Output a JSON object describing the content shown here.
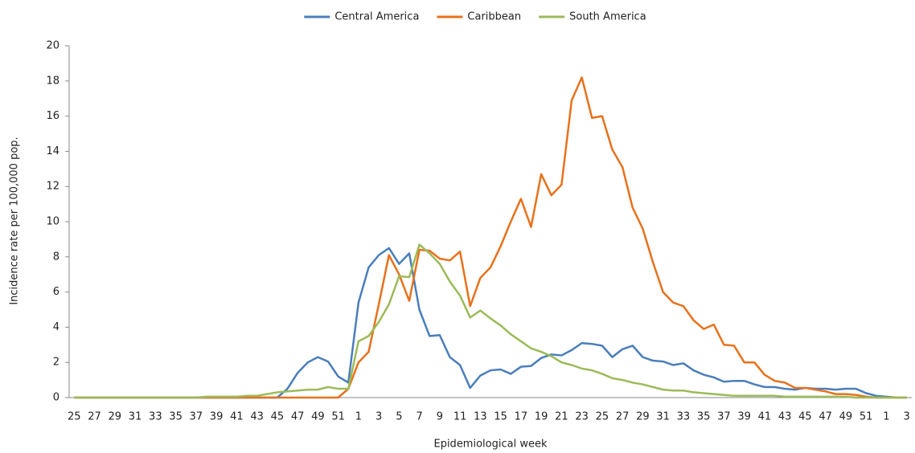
{
  "chart_data": {
    "type": "line",
    "y_label": "Incidence rate per 100,000 pop.",
    "x_label": "Epidemiological week",
    "categories": [
      "25",
      null,
      "27",
      null,
      "29",
      null,
      "31",
      null,
      "33",
      null,
      "35",
      null,
      "37",
      null,
      "39",
      null,
      "41",
      null,
      "43",
      null,
      "45",
      null,
      "47",
      null,
      "49",
      null,
      "51",
      null,
      "1",
      null,
      "3",
      null,
      "5",
      null,
      "7",
      null,
      "9",
      null,
      "11",
      null,
      "13",
      null,
      "15",
      null,
      "17",
      null,
      "19",
      null,
      "21",
      null,
      "23",
      null,
      "25",
      null,
      "27",
      null,
      "29",
      null,
      "31",
      null,
      "33",
      null,
      "35",
      null,
      "37",
      null,
      "39",
      null,
      "41",
      null,
      "43",
      null,
      "45",
      null,
      "47",
      null,
      "49",
      null,
      "51",
      null,
      "1",
      null,
      "3"
    ],
    "series": [
      {
        "name": "Central America",
        "color": "#4a7ebb",
        "values": [
          0,
          0,
          0,
          0,
          0,
          0,
          0,
          0,
          0,
          0,
          0,
          0,
          0,
          0,
          0,
          0,
          0,
          0,
          0,
          0,
          0,
          0.5,
          1.4,
          2.0,
          2.3,
          2.05,
          1.2,
          0.85,
          5.4,
          7.4,
          8.1,
          8.5,
          7.6,
          8.2,
          5.0,
          3.5,
          3.55,
          2.3,
          1.85,
          0.55,
          1.25,
          1.55,
          1.6,
          1.35,
          1.75,
          1.8,
          2.25,
          2.45,
          2.4,
          2.7,
          3.1,
          3.05,
          2.95,
          2.3,
          2.75,
          2.95,
          2.3,
          2.1,
          2.05,
          1.85,
          1.95,
          1.55,
          1.3,
          1.15,
          0.9,
          0.95,
          0.95,
          0.75,
          0.6,
          0.6,
          0.5,
          0.45,
          0.55,
          0.5,
          0.5,
          0.45,
          0.5,
          0.5,
          0.25,
          0.1,
          0.05,
          0,
          0
        ]
      },
      {
        "name": "Caribbean",
        "color": "#e8711c",
        "values": [
          0,
          0,
          0,
          0,
          0,
          0,
          0,
          0,
          0,
          0,
          0,
          0,
          0,
          0,
          0,
          0,
          0,
          0,
          0,
          0,
          0,
          0,
          0,
          0,
          0,
          0,
          0,
          0.5,
          2.0,
          2.6,
          5.3,
          8.1,
          7.0,
          5.5,
          8.4,
          8.35,
          7.9,
          7.8,
          8.3,
          5.2,
          6.8,
          7.4,
          8.6,
          10.0,
          11.3,
          9.7,
          12.7,
          11.5,
          12.1,
          16.9,
          18.2,
          15.9,
          16.0,
          14.1,
          13.1,
          10.8,
          9.6,
          7.7,
          6.0,
          5.4,
          5.2,
          4.4,
          3.9,
          4.15,
          3.0,
          2.95,
          2.0,
          2.0,
          1.3,
          0.95,
          0.85,
          0.55,
          0.55,
          0.45,
          0.35,
          0.2,
          0.2,
          0.15,
          0.05,
          0,
          0,
          0,
          0
        ]
      },
      {
        "name": "South America",
        "color": "#9bbb59",
        "values": [
          0,
          0,
          0,
          0,
          0,
          0,
          0,
          0,
          0,
          0,
          0,
          0,
          0,
          0.05,
          0.05,
          0.05,
          0.05,
          0.1,
          0.1,
          0.2,
          0.3,
          0.35,
          0.4,
          0.45,
          0.45,
          0.6,
          0.5,
          0.5,
          3.2,
          3.5,
          4.3,
          5.3,
          6.9,
          6.85,
          8.7,
          8.2,
          7.6,
          6.6,
          5.8,
          4.55,
          4.95,
          4.5,
          4.1,
          3.6,
          3.2,
          2.8,
          2.6,
          2.35,
          2.0,
          1.85,
          1.65,
          1.55,
          1.35,
          1.1,
          1.0,
          0.85,
          0.75,
          0.6,
          0.45,
          0.4,
          0.4,
          0.3,
          0.25,
          0.2,
          0.15,
          0.1,
          0.1,
          0.1,
          0.1,
          0.1,
          0.05,
          0.05,
          0.05,
          0.05,
          0.05,
          0.05,
          0.05,
          0,
          0,
          0,
          0,
          0,
          0
        ]
      }
    ],
    "ylim": [
      0,
      20
    ],
    "yticks": [
      0,
      2,
      4,
      6,
      8,
      10,
      12,
      14,
      16,
      18,
      20
    ],
    "legend": "top"
  }
}
